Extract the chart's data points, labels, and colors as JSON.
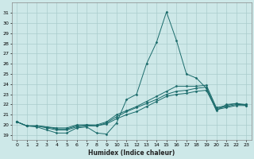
{
  "title": "",
  "xlabel": "Humidex (Indice chaleur)",
  "ylabel": "",
  "bg_color": "#cde8e8",
  "grid_color": "#aacccc",
  "line_color": "#1a6b6b",
  "xlim": [
    -0.5,
    23.5
  ],
  "ylim": [
    18.5,
    32.0
  ],
  "yticks": [
    19,
    20,
    21,
    22,
    23,
    24,
    25,
    26,
    27,
    28,
    29,
    30,
    31
  ],
  "xticks": [
    0,
    1,
    2,
    3,
    4,
    5,
    6,
    7,
    8,
    9,
    10,
    11,
    12,
    13,
    14,
    15,
    16,
    17,
    18,
    19,
    20,
    21,
    22,
    23
  ],
  "lines": [
    [
      20.3,
      19.9,
      19.8,
      19.5,
      19.2,
      19.2,
      19.7,
      19.8,
      19.2,
      19.1,
      20.2,
      22.5,
      23.0,
      26.0,
      28.1,
      31.1,
      28.3,
      25.0,
      24.6,
      23.6,
      21.4,
      22.0,
      22.1,
      21.9
    ],
    [
      20.3,
      19.9,
      19.9,
      19.7,
      19.5,
      19.5,
      19.8,
      19.9,
      19.9,
      20.1,
      20.6,
      21.0,
      21.3,
      21.8,
      22.3,
      22.8,
      23.0,
      23.1,
      23.3,
      23.4,
      21.5,
      21.7,
      21.9,
      21.9
    ],
    [
      20.3,
      19.9,
      19.9,
      19.8,
      19.6,
      19.6,
      19.9,
      20.0,
      19.9,
      20.2,
      20.8,
      21.3,
      21.7,
      22.1,
      22.5,
      23.0,
      23.3,
      23.4,
      23.6,
      23.7,
      21.6,
      21.8,
      22.0,
      22.0
    ],
    [
      20.3,
      19.9,
      19.9,
      19.8,
      19.7,
      19.7,
      20.0,
      20.0,
      20.0,
      20.3,
      21.0,
      21.4,
      21.8,
      22.3,
      22.8,
      23.3,
      23.8,
      23.8,
      23.8,
      23.9,
      21.7,
      21.9,
      22.1,
      22.0
    ]
  ]
}
